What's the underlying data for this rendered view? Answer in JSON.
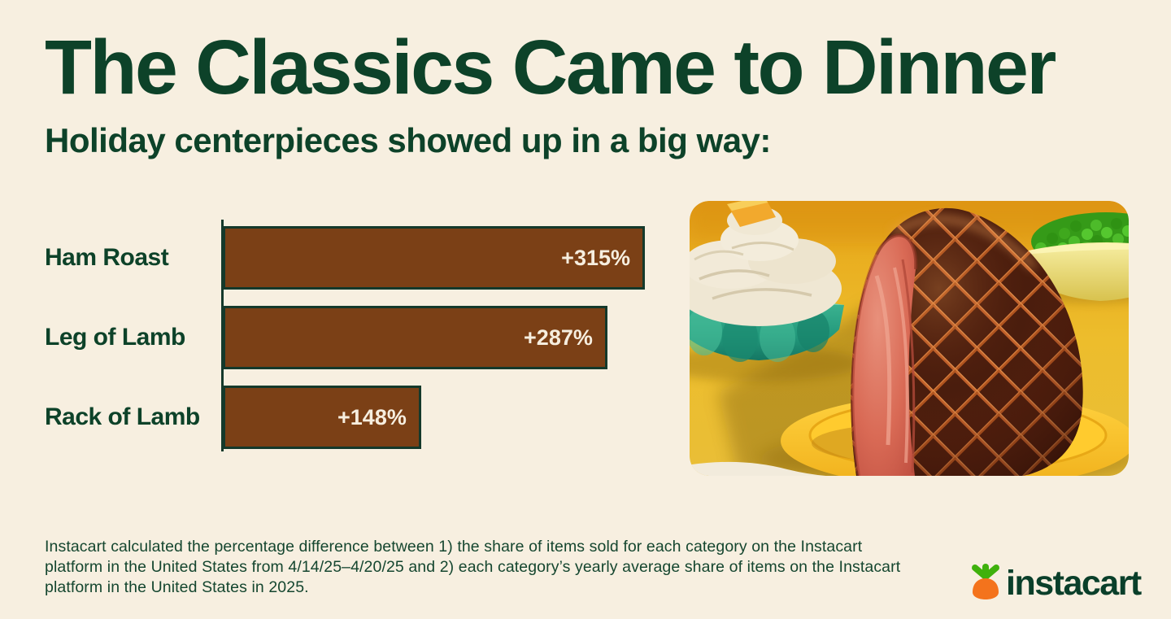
{
  "header": {
    "title": "The Classics Came to Dinner",
    "subtitle": "Holiday centerpieces showed up in a big way:"
  },
  "chart_data": {
    "type": "bar",
    "orientation": "horizontal",
    "categories": [
      "Ham Roast",
      "Leg of Lamb",
      "Rack of Lamb"
    ],
    "values": [
      315,
      287,
      148
    ],
    "value_labels": [
      "+315%",
      "+287%",
      "+148%"
    ],
    "unit": "percent increase vs yearly average share",
    "xlim": [
      0,
      315
    ],
    "grid": false,
    "legend": false,
    "bar_color": "#7B4016",
    "bar_border_color": "#14392B",
    "axis_line_color": "#14392B",
    "category_label_color": "#0D4229",
    "value_label_color": "#F6EEDF"
  },
  "photo": {
    "alt": "Glazed spiral-cut ham with diamond-scored crust on a yellow plate, beside a teal glass bowl of mashed potatoes topped with butter and a pale yellow bowl of green peas on a mustard-yellow table"
  },
  "footnote": "Instacart calculated the percentage difference between 1) the share of items sold for each category on the Instacart platform in the United States from 4/14/25–4/20/25 and 2) each category’s yearly average share of items on the Instacart platform in the United States in 2025.",
  "logo": {
    "text": "instacart",
    "carrot_orange": "#F4731C",
    "leaf_green": "#3FB10C",
    "text_color": "#0A3F2A"
  },
  "colors": {
    "background": "#F7EFE0",
    "heading": "#0D4229"
  }
}
